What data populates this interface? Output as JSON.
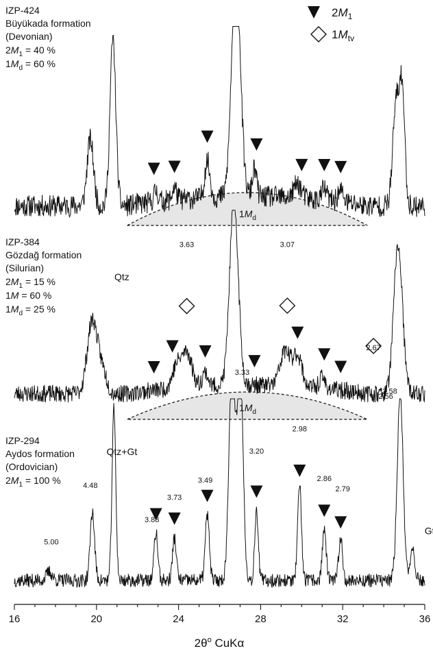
{
  "chart_data": {
    "type": "line",
    "xlabel_parts": {
      "main": "2θ",
      "sup": "o",
      "rest": " CuKα"
    },
    "xlim": [
      16,
      36
    ],
    "xticks": [
      16,
      20,
      24,
      28,
      32,
      36
    ],
    "legend": {
      "placement": "top-right",
      "entries": [
        {
          "symbol": "filled-down-triangle",
          "name_main": "2",
          "name_italic": "M",
          "name_sub": "1"
        },
        {
          "symbol": "open-diamond",
          "name_main": "1",
          "name_italic": "M",
          "name_sub": "tv"
        }
      ]
    },
    "panels": [
      {
        "id": "IZP-424",
        "sample": "IZP-424",
        "formation": "Büyükada formation",
        "age": "(Devonian)",
        "composition": [
          {
            "pre": "2",
            "ital": "M",
            "sub": "1",
            "post": " = 40 %"
          },
          {
            "pre": "1",
            "ital": "M",
            "sub": "d",
            "post": " = 60 %"
          }
        ],
        "envelope_label": {
          "pre": "1",
          "ital": "M",
          "sub": "d"
        },
        "envelope_range": [
          21.5,
          33.2
        ],
        "baseline": 0.08,
        "noise": 0.06,
        "seed": 11,
        "clip": 1.05,
        "peaks": [
          {
            "x": 19.7,
            "h": 0.36,
            "w": 0.22
          },
          {
            "x": 20.8,
            "h": 0.9,
            "w": 0.2
          },
          {
            "x": 22.9,
            "h": 0.06,
            "w": 0.15
          },
          {
            "x": 23.8,
            "h": 0.07,
            "w": 0.15
          },
          {
            "x": 25.4,
            "h": 0.2,
            "w": 0.18
          },
          {
            "x": 26.8,
            "h": 1.25,
            "w": 0.3
          },
          {
            "x": 27.7,
            "h": 0.15,
            "w": 0.15
          },
          {
            "x": 29.8,
            "h": 0.08,
            "w": 0.25
          },
          {
            "x": 31.1,
            "h": 0.06,
            "w": 0.2
          },
          {
            "x": 31.9,
            "h": 0.06,
            "w": 0.2
          },
          {
            "x": 34.6,
            "h": 0.55,
            "w": 0.22
          },
          {
            "x": 34.9,
            "h": 0.6,
            "w": 0.18
          }
        ],
        "triangles": [
          22.8,
          23.8,
          25.4,
          27.8,
          30.0,
          31.1,
          31.9
        ],
        "diamonds": [],
        "peak_labels": [],
        "text_labels": []
      },
      {
        "id": "IZP-384",
        "sample": "IZP-384",
        "formation": "Gözdağ formation",
        "age": "(Silurian)",
        "composition": [
          {
            "pre": "2",
            "ital": "M",
            "sub": "1",
            "post": " = 15 %"
          },
          {
            "pre": "1",
            "ital": "M",
            "sub": "",
            "post": "  = 60 %"
          },
          {
            "pre": "1",
            "ital": "M",
            "sub": "d",
            "post": " = 25 %"
          }
        ],
        "envelope_label": {
          "pre": "1",
          "ital": "M",
          "sub": "d"
        },
        "envelope_range": [
          21.5,
          33.2
        ],
        "baseline": 0.1,
        "noise": 0.05,
        "seed": 23,
        "clip": 1.15,
        "peaks": [
          {
            "x": 19.8,
            "h": 0.42,
            "w": 0.35
          },
          {
            "x": 20.3,
            "h": 0.12,
            "w": 0.3
          },
          {
            "x": 23.9,
            "h": 0.12,
            "w": 0.3
          },
          {
            "x": 24.4,
            "h": 0.2,
            "w": 0.35
          },
          {
            "x": 25.3,
            "h": 0.08,
            "w": 0.2
          },
          {
            "x": 26.7,
            "h": 1.05,
            "w": 0.3
          },
          {
            "x": 29.2,
            "h": 0.2,
            "w": 0.35
          },
          {
            "x": 29.8,
            "h": 0.18,
            "w": 0.3
          },
          {
            "x": 31.0,
            "h": 0.06,
            "w": 0.2
          },
          {
            "x": 34.7,
            "h": 0.85,
            "w": 0.3
          }
        ],
        "triangles": [
          22.8,
          23.7,
          25.3,
          27.7,
          29.8,
          31.1,
          31.9
        ],
        "diamonds": [
          24.4,
          29.3,
          33.5
        ],
        "peak_labels": [
          {
            "x": 24.4,
            "text": "3.63",
            "y": 0.94
          },
          {
            "x": 29.3,
            "text": "3.07",
            "y": 0.94
          },
          {
            "x": 33.5,
            "text": "2.67",
            "y": 0.35
          },
          {
            "x": 34.3,
            "text": "2.58",
            "y": 0.1
          }
        ],
        "text_labels": [
          {
            "x": 17.9,
            "y": 0.75,
            "text": "Qtz"
          },
          {
            "x": 17.9,
            "y": -0.25,
            "text": "Qtz+Gt"
          }
        ]
      },
      {
        "id": "IZP-294",
        "sample": "IZP-294",
        "formation": "Aydos formation",
        "age": "(Ordovician)",
        "composition": [
          {
            "pre": "2",
            "ital": "M",
            "sub": "1",
            "post": " = 100 %"
          }
        ],
        "envelope_label": null,
        "envelope_range": null,
        "baseline": 0.06,
        "noise": 0.04,
        "seed": 37,
        "clip": 1.12,
        "peaks": [
          {
            "x": 17.7,
            "h": 0.05,
            "w": 0.2
          },
          {
            "x": 19.8,
            "h": 0.4,
            "w": 0.15
          },
          {
            "x": 20.85,
            "h": 1.0,
            "w": 0.13
          },
          {
            "x": 22.9,
            "h": 0.28,
            "w": 0.13
          },
          {
            "x": 23.8,
            "h": 0.25,
            "w": 0.13
          },
          {
            "x": 25.4,
            "h": 0.38,
            "w": 0.14
          },
          {
            "x": 26.6,
            "h": 1.3,
            "w": 0.2
          },
          {
            "x": 27.0,
            "h": 1.3,
            "w": 0.2
          },
          {
            "x": 27.8,
            "h": 0.42,
            "w": 0.12
          },
          {
            "x": 29.9,
            "h": 0.55,
            "w": 0.13
          },
          {
            "x": 31.1,
            "h": 0.3,
            "w": 0.13
          },
          {
            "x": 31.9,
            "h": 0.25,
            "w": 0.13
          },
          {
            "x": 34.8,
            "h": 1.1,
            "w": 0.2
          },
          {
            "x": 35.4,
            "h": 0.2,
            "w": 0.15
          }
        ],
        "triangles": [
          22.9,
          23.8,
          25.4,
          27.8,
          29.9,
          31.1,
          31.9
        ],
        "diamonds": [],
        "peak_labels": [
          {
            "x": 17.8,
            "text": "5.00",
            "y": 0.27
          },
          {
            "x": 19.7,
            "text": "4.48",
            "y": 0.6
          },
          {
            "x": 22.7,
            "text": "3.88",
            "y": 0.4
          },
          {
            "x": 23.8,
            "text": "3.73",
            "y": 0.53
          },
          {
            "x": 25.3,
            "text": "3.49",
            "y": 0.63
          },
          {
            "x": 27.1,
            "text": "3.33",
            "y": 1.26
          },
          {
            "x": 27.8,
            "text": "3.20",
            "y": 0.8
          },
          {
            "x": 29.9,
            "text": "2.98",
            "y": 0.93
          },
          {
            "x": 31.1,
            "text": "2.86",
            "y": 0.64
          },
          {
            "x": 32.0,
            "text": "2.79",
            "y": 0.58
          },
          {
            "x": 34.1,
            "text": "2.56",
            "y": 1.12
          }
        ],
        "text_labels": [
          {
            "x": 32.9,
            "y": 0.33,
            "text": "Gt"
          }
        ]
      }
    ]
  }
}
